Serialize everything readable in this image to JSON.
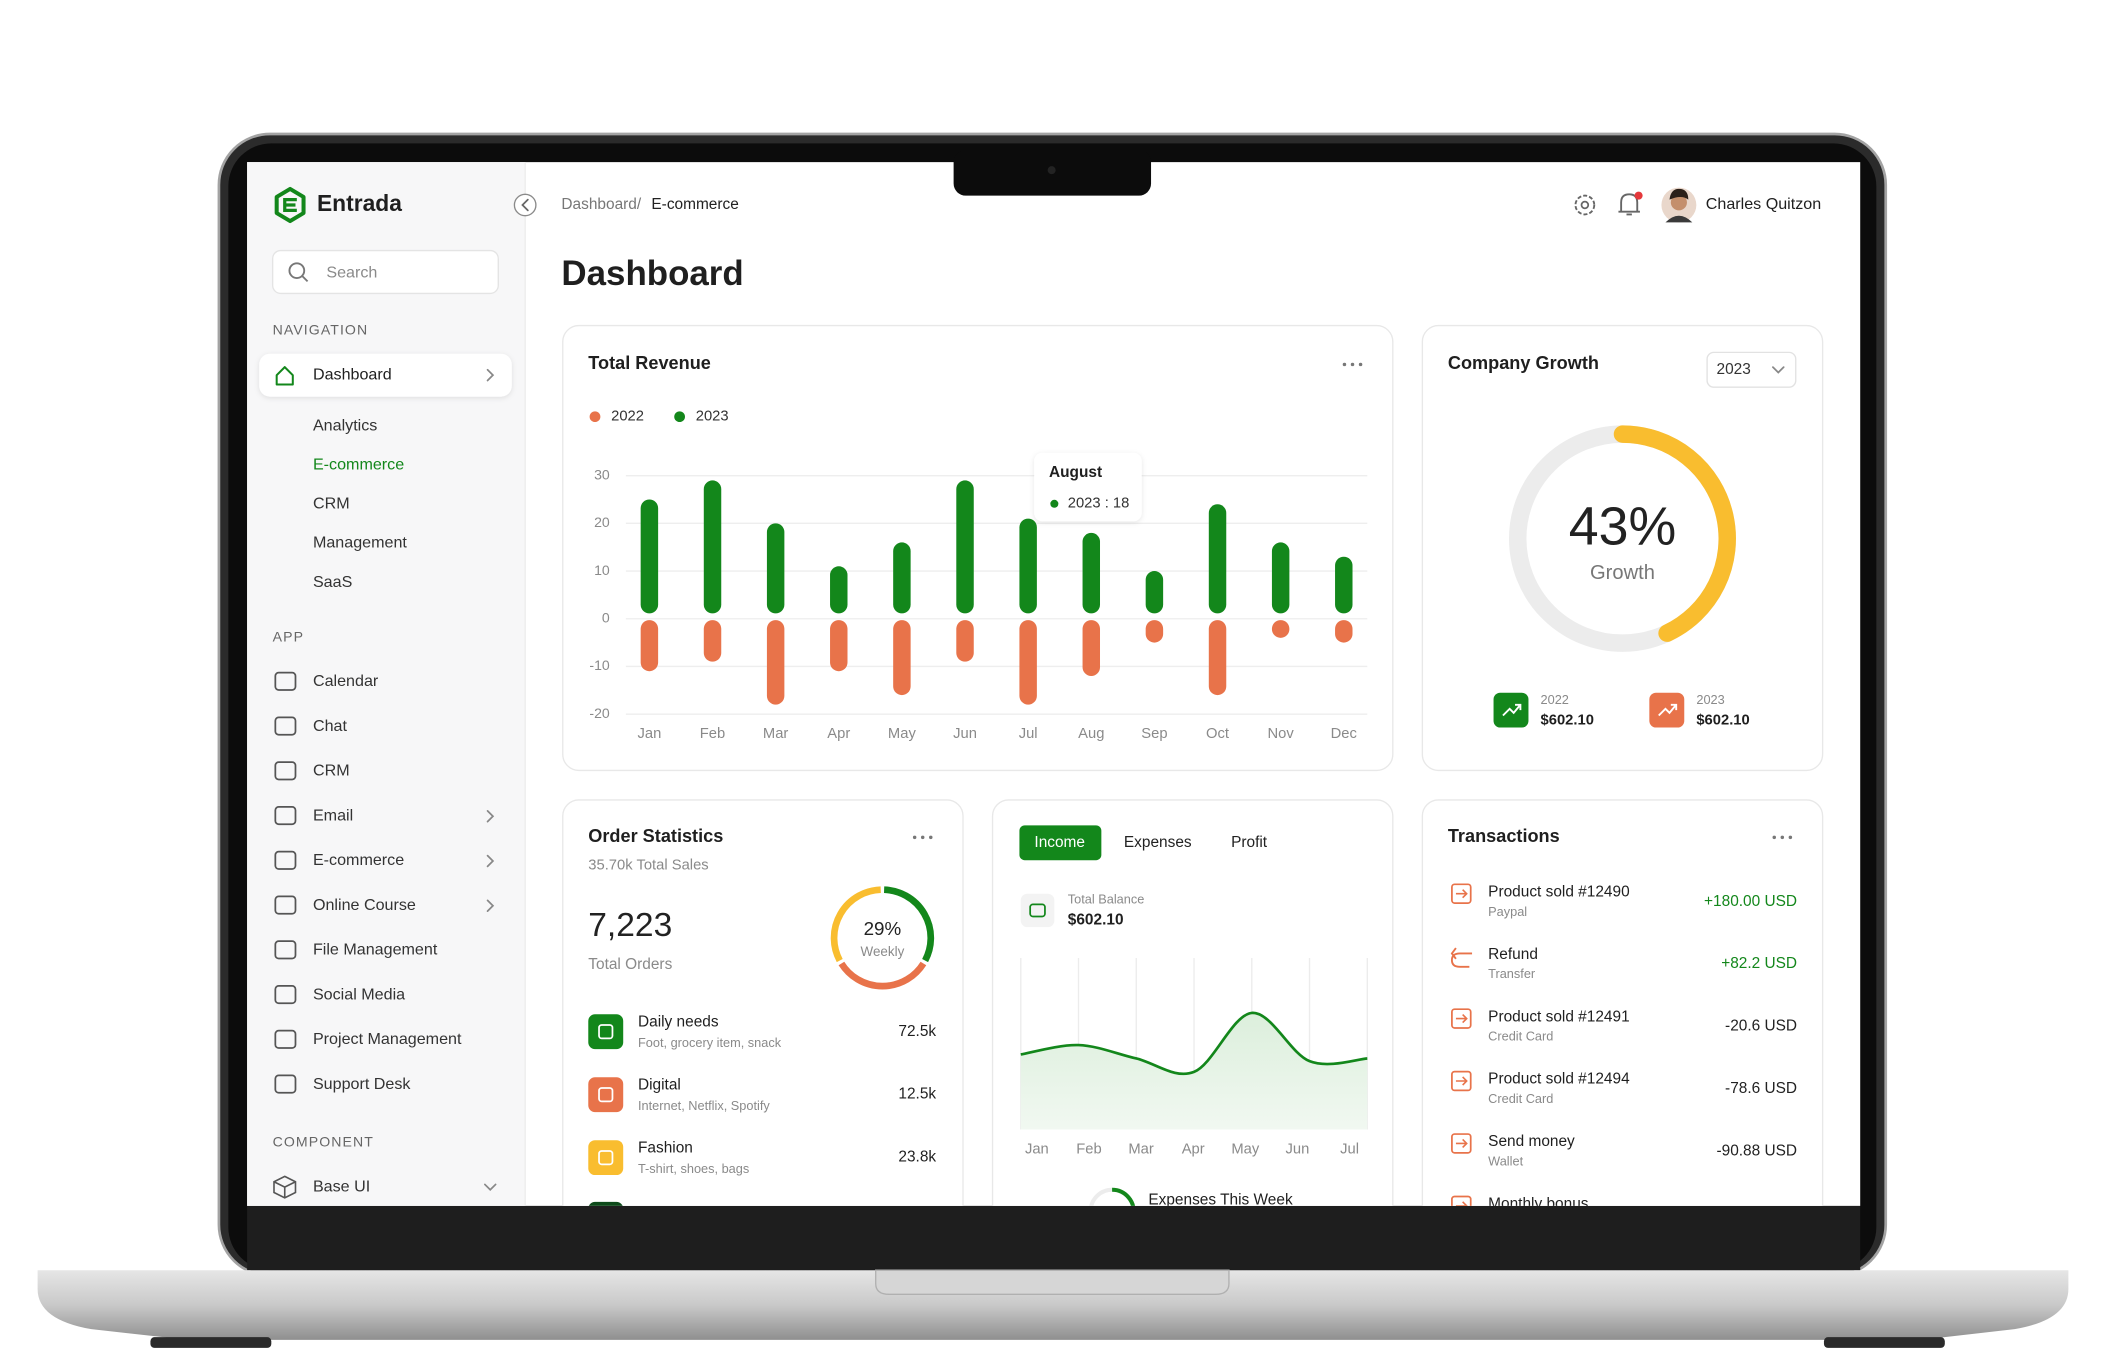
{
  "sidebar": {
    "brand": "Entrada",
    "search": "Search",
    "navigation": {
      "title": "NAVIGATION",
      "item": "Dashboard",
      "children": [
        "Analytics",
        "E-commerce",
        "CRM",
        "Management",
        "SaaS"
      ]
    },
    "app": {
      "title": "APP",
      "items": [
        "Calendar",
        "Chat",
        "CRM",
        "Email",
        "E-commerce",
        "Online Course",
        "File Management",
        "Social Media",
        "Project Management",
        "Support Desk"
      ]
    },
    "component": {
      "title": "COMPONENT",
      "items": [
        "Base UI"
      ]
    }
  },
  "header": {
    "breadcrumb": "Dashboard/",
    "current": "E-commerce",
    "user": "Charles Quitzon"
  },
  "page_title": "Dashboard",
  "chart_data": [
    {
      "type": "bar",
      "title": "Total Revenue",
      "categories": [
        "Jan",
        "Feb",
        "Mar",
        "Apr",
        "May",
        "Jun",
        "Jul",
        "Aug",
        "Sep",
        "Oct",
        "Nov",
        "Dec"
      ],
      "series": [
        {
          "name": "2022",
          "color": "#e8734a",
          "values": [
            -11,
            -9,
            -18,
            -11,
            -16,
            -9,
            -18,
            -12,
            -5,
            -16,
            -4,
            -5
          ]
        },
        {
          "name": "2023",
          "color": "#13871b",
          "values": [
            25,
            29,
            20,
            11,
            16,
            29,
            21,
            18,
            10,
            24,
            16,
            13
          ]
        }
      ],
      "ylim": [
        -20,
        30
      ],
      "yticks": [
        -20,
        -10,
        0,
        10,
        20,
        30
      ],
      "grid": true,
      "tooltip": {
        "title": "August",
        "text": "2023 : 18"
      }
    },
    {
      "type": "area",
      "categories": [
        "Jan",
        "Feb",
        "Mar",
        "Apr",
        "May",
        "Jun",
        "Jul"
      ],
      "values": [
        56,
        63,
        53,
        43,
        87,
        51,
        53
      ],
      "color": "#13871b",
      "grid": true
    },
    {
      "type": "donut",
      "title": "Company Growth",
      "filter": "2023",
      "value": 43,
      "value_label": "43%",
      "label": "Growth",
      "color": "#f9bd2f",
      "track_color": "#ececec",
      "legend": [
        {
          "year": "2022",
          "amount": "$602.10",
          "color": "#13871b"
        },
        {
          "year": "2023",
          "amount": "$602.10",
          "color": "#e8734a"
        }
      ]
    }
  ],
  "order_statistics": {
    "title": "Order Statistics",
    "subtitle": "35.70k Total Sales",
    "total": "7,223",
    "total_label": "Total Orders",
    "weekly": "29%",
    "weekly_label": "Weekly",
    "items": [
      {
        "name": "Daily needs",
        "detail": "Foot, grocery item, snack",
        "value": "72.5k",
        "color": "#13871b"
      },
      {
        "name": "Digital",
        "detail": "Internet, Netflix, Spotify",
        "value": "12.5k",
        "color": "#e8734a"
      },
      {
        "name": "Fashion",
        "detail": "T-shirt, shoes, bags",
        "value": "23.8k",
        "color": "#f9bd2f"
      }
    ]
  },
  "income": {
    "tabs": [
      "Income",
      "Expenses",
      "Profit"
    ],
    "balance_label": "Total Balance",
    "balance": "$602.10",
    "footer": "Expenses This Week"
  },
  "transactions": {
    "title": "Transactions",
    "items": [
      {
        "title": "Product sold #12490",
        "method": "Paypal",
        "amount": "+180.00 USD"
      },
      {
        "title": "Refund",
        "method": "Transfer",
        "amount": "+82.2 USD"
      },
      {
        "title": "Product sold #12491",
        "method": "Credit Card",
        "amount": "-20.6 USD"
      },
      {
        "title": "Product sold #12494",
        "method": "Credit Card",
        "amount": "-78.6 USD"
      },
      {
        "title": "Send money",
        "method": "Wallet",
        "amount": "-90.88 USD"
      },
      {
        "title": "Monthly bonus"
      }
    ]
  }
}
